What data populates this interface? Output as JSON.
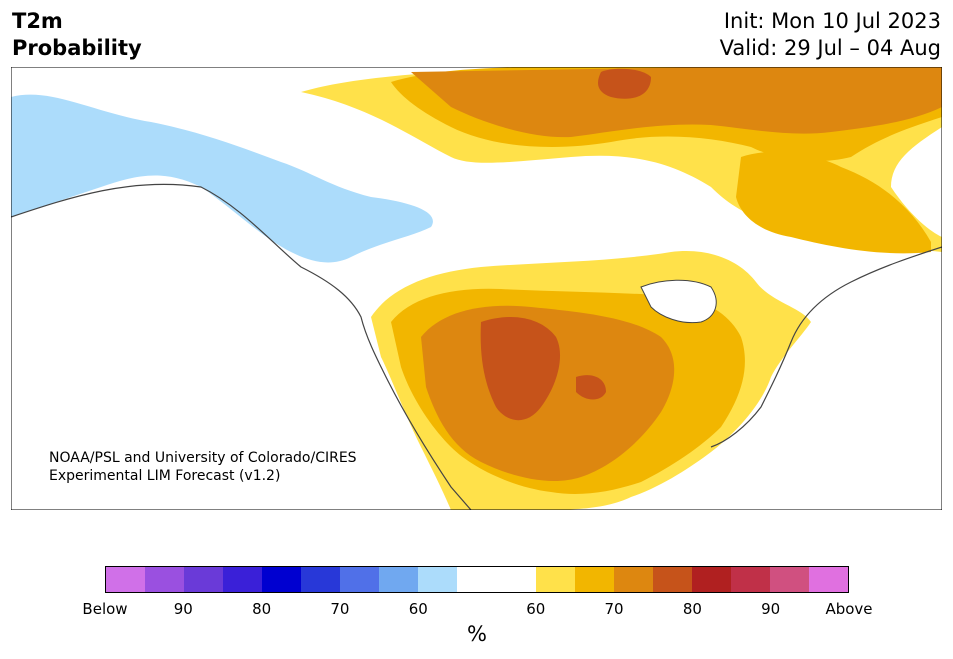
{
  "header": {
    "title_line1": "T2m",
    "title_line2": "Probability",
    "init": "Init: Mon 10 Jul 2023",
    "valid": "Valid: 29 Jul – 04 Aug"
  },
  "credit": {
    "line1": "NOAA/PSL and University of Colorado/CIRES",
    "line2": "Experimental LIM Forecast (v1.2)"
  },
  "colorbar": {
    "colors": [
      "#d070e8",
      "#9a50e0",
      "#6a3ad8",
      "#3a20d8",
      "#0000d0",
      "#2838d8",
      "#5070e8",
      "#70a8f0",
      "#acdcfb",
      "#ffffff",
      "#ffffff",
      "#ffe14a",
      "#f2b600",
      "#dd8710",
      "#c6531a",
      "#b02020",
      "#c03048",
      "#d05080",
      "#e070e0"
    ],
    "ticks": [
      "Below",
      "90",
      "80",
      "70",
      "60",
      "60",
      "70",
      "80",
      "90",
      "Above"
    ],
    "unit": "%"
  },
  "legend_meaning": {
    "below": "Below-normal probability (blues/purples)",
    "above": "Above-normal probability (yellows/oranges/reds)"
  }
}
